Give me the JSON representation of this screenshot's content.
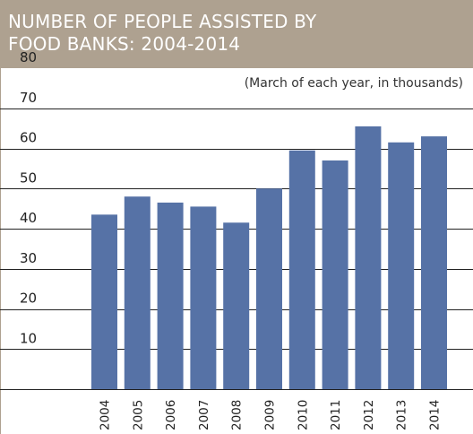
{
  "title_lines": [
    "NUMBER OF PEOPLE ASSISTED BY",
    "FOOD BANKS: 2004-2014"
  ],
  "colors": {
    "title_band": "#aea190",
    "bar": "#5672a6",
    "gridline": "#222222",
    "frame": "#aea190"
  },
  "chart_data": {
    "type": "bar",
    "title": "NUMBER OF PEOPLE ASSISTED BY FOOD BANKS: 2004-2014",
    "subtitle": "(March of each year, in thousands)",
    "xlabel": "",
    "ylabel": "",
    "categories": [
      "2004",
      "2005",
      "2006",
      "2007",
      "2008",
      "2009",
      "2010",
      "2011",
      "2012",
      "2013",
      "2014"
    ],
    "values": [
      43.5,
      48,
      46.5,
      45.5,
      41.5,
      50,
      59.5,
      57,
      65.5,
      61.5,
      63
    ],
    "ylim": [
      0,
      80
    ],
    "yticks": [
      10,
      20,
      30,
      40,
      50,
      60,
      70,
      80
    ],
    "grid": true,
    "legend": "none"
  }
}
